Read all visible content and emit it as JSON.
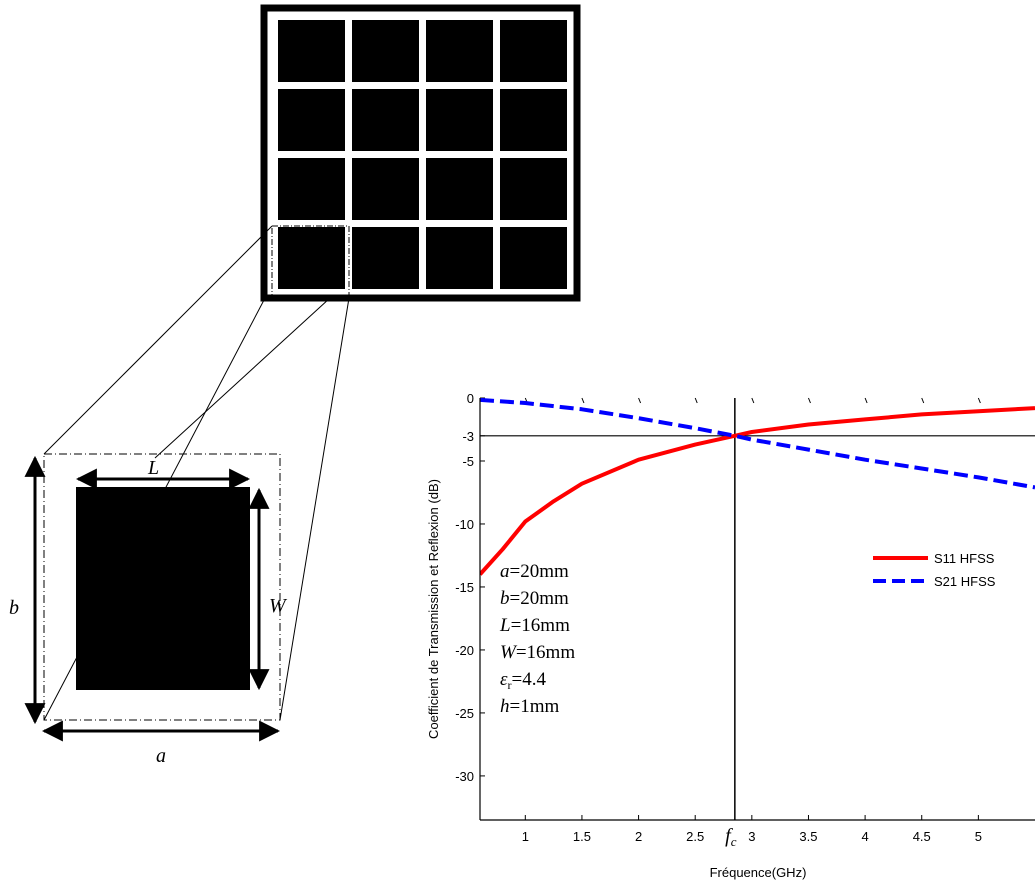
{
  "unit_cell": {
    "label_L": "L",
    "label_W": "W",
    "label_a": "a",
    "label_b": "b"
  },
  "chart_data": {
    "type": "line",
    "xlabel": "Fréquence(GHz)",
    "ylabel": "Coefficient de Transmission et Reflexion (dB)",
    "xlim": [
      0.6,
      5.5
    ],
    "ylim": [
      -33.5,
      0
    ],
    "x_ticks": [
      1,
      1.5,
      2,
      2.5,
      3,
      3.5,
      4,
      4.5,
      5
    ],
    "x_tick_labels": [
      "1",
      "1.5",
      "2",
      "2.5",
      "3",
      "3.5",
      "4",
      "4.5",
      "5"
    ],
    "y_ticks": [
      0,
      -3,
      -5,
      -10,
      -15,
      -20,
      -25,
      -30
    ],
    "y_tick_labels": [
      "0",
      "-3",
      "-5",
      "-10",
      "-15",
      "-20",
      "-25",
      "-30"
    ],
    "fc_label": "f",
    "fc_sub": "c",
    "fc_value": 2.85,
    "ref_level_db": -3,
    "legend_position": "right",
    "series": [
      {
        "name": "S11 HFSS",
        "color": "#ff0000",
        "style": "solid",
        "x": [
          0.6,
          0.8,
          1.0,
          1.25,
          1.5,
          2.0,
          2.5,
          2.85,
          3.0,
          3.5,
          4.0,
          4.5,
          5.0,
          5.5
        ],
        "y": [
          -14.0,
          -12.0,
          -9.8,
          -8.2,
          -6.8,
          -4.9,
          -3.7,
          -3.0,
          -2.7,
          -2.1,
          -1.7,
          -1.3,
          -1.05,
          -0.8
        ]
      },
      {
        "name": "S21 HFSS",
        "color": "#0000ff",
        "style": "dashed",
        "x": [
          0.6,
          1.0,
          1.5,
          2.0,
          2.5,
          2.85,
          3.0,
          3.5,
          4.0,
          4.5,
          5.0,
          5.5
        ],
        "y": [
          -0.15,
          -0.4,
          -0.9,
          -1.6,
          -2.4,
          -3.0,
          -3.3,
          -4.1,
          -4.9,
          -5.6,
          -6.3,
          -7.1
        ]
      }
    ],
    "annotations": [
      {
        "var": "a",
        "rest": "=20mm"
      },
      {
        "var": "b",
        "rest": "=20mm"
      },
      {
        "var": "L",
        "rest": "=16mm"
      },
      {
        "var": "W",
        "rest": "=16mm"
      },
      {
        "var": "ε",
        "sub": "r",
        "rest": "=4.4"
      },
      {
        "var": "h",
        "rest": "=1mm"
      }
    ]
  }
}
